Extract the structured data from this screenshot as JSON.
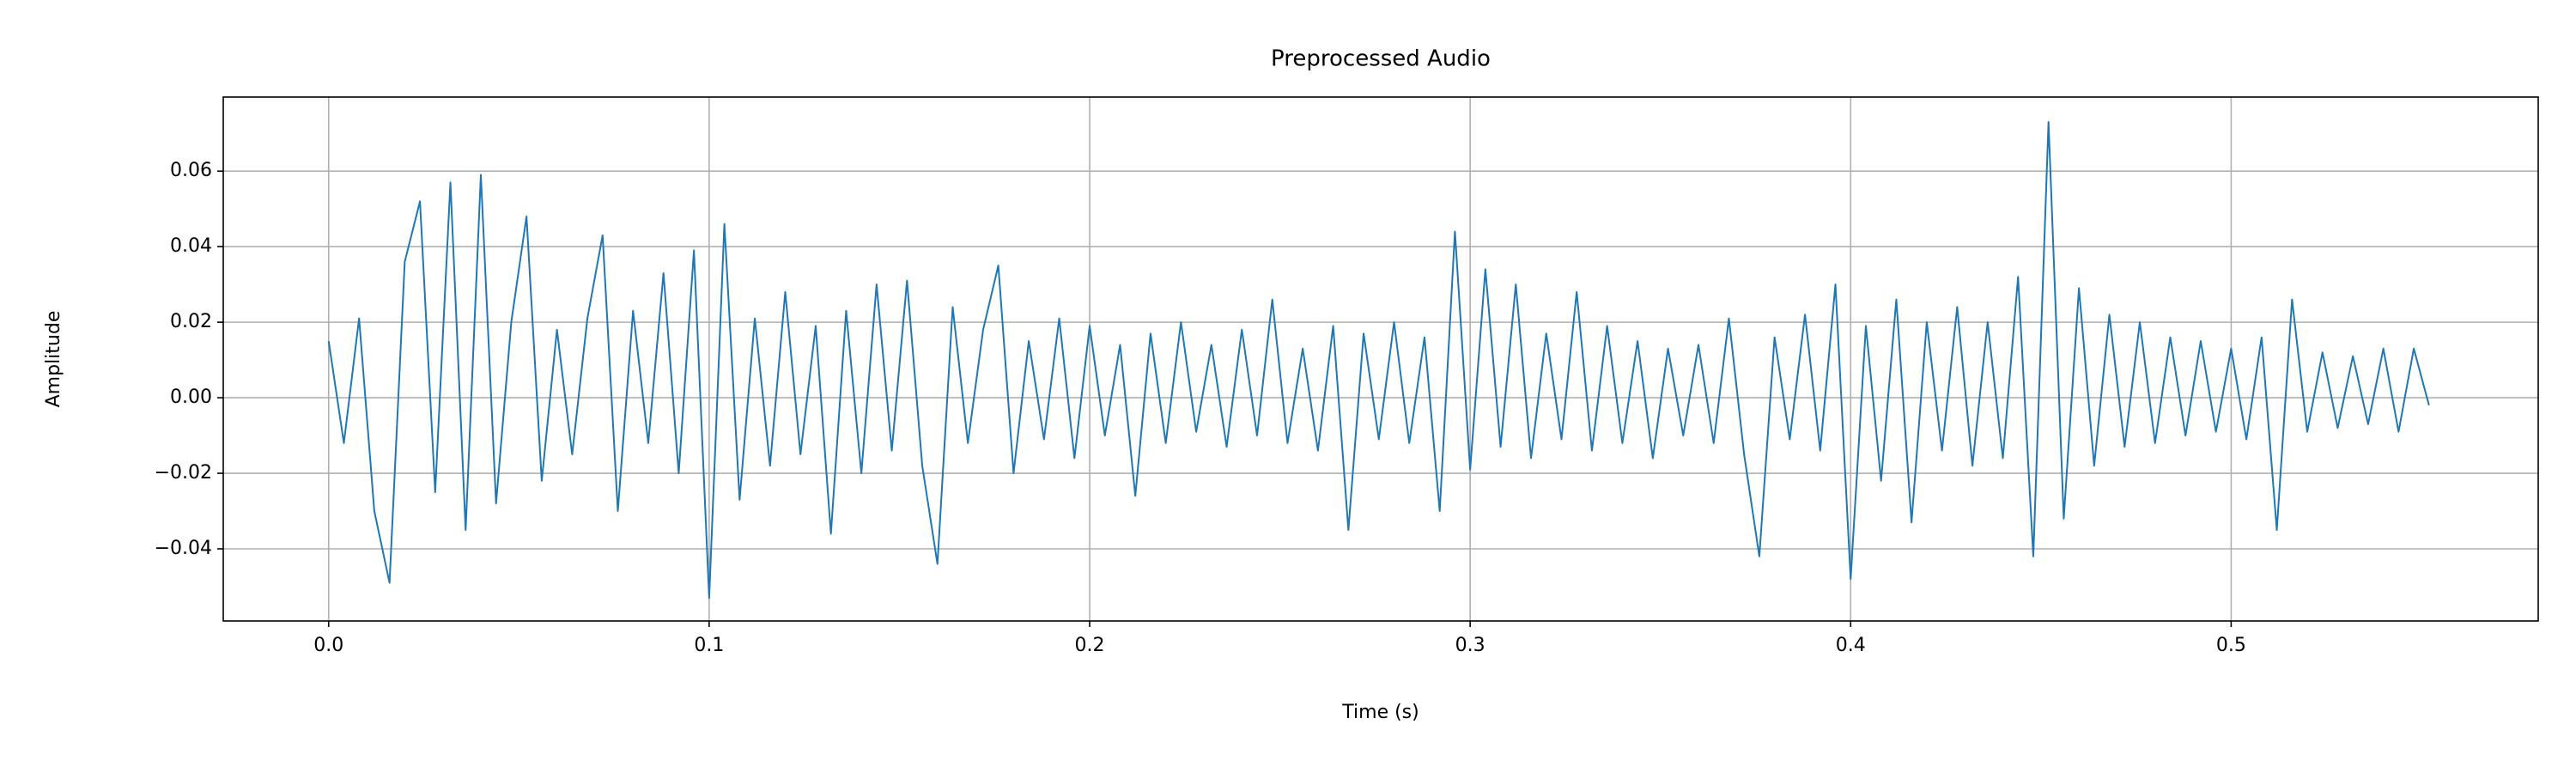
{
  "chart_data": {
    "type": "line",
    "title": "Preprocessed Audio",
    "x_label": "Time (s)",
    "y_label": "Amplitude",
    "x": [
      0.0,
      0.004,
      0.008,
      0.012,
      0.016,
      0.02,
      0.024,
      0.028,
      0.032,
      0.036,
      0.04,
      0.044,
      0.048,
      0.052,
      0.056,
      0.06,
      0.064,
      0.068,
      0.072,
      0.076,
      0.08,
      0.084,
      0.088,
      0.092,
      0.096,
      0.1,
      0.104,
      0.108,
      0.112,
      0.116,
      0.12,
      0.124,
      0.128,
      0.132,
      0.136,
      0.14,
      0.144,
      0.148,
      0.152,
      0.156,
      0.16,
      0.164,
      0.168,
      0.172,
      0.176,
      0.18,
      0.184,
      0.188,
      0.192,
      0.196,
      0.2,
      0.204,
      0.208,
      0.212,
      0.216,
      0.22,
      0.224,
      0.228,
      0.232,
      0.236,
      0.24,
      0.244,
      0.248,
      0.252,
      0.256,
      0.26,
      0.264,
      0.268,
      0.272,
      0.276,
      0.28,
      0.284,
      0.288,
      0.292,
      0.296,
      0.3,
      0.304,
      0.308,
      0.312,
      0.316,
      0.32,
      0.324,
      0.328,
      0.332,
      0.336,
      0.34,
      0.344,
      0.348,
      0.352,
      0.356,
      0.36,
      0.364,
      0.368,
      0.372,
      0.376,
      0.38,
      0.384,
      0.388,
      0.392,
      0.396,
      0.4,
      0.404,
      0.408,
      0.412,
      0.416,
      0.42,
      0.424,
      0.428,
      0.432,
      0.436,
      0.44,
      0.444,
      0.448,
      0.452,
      0.456,
      0.46,
      0.464,
      0.468,
      0.472,
      0.476,
      0.48,
      0.484,
      0.488,
      0.492,
      0.496,
      0.5,
      0.504,
      0.508,
      0.512,
      0.516,
      0.52,
      0.524,
      0.528,
      0.532,
      0.536,
      0.54,
      0.544,
      0.548,
      0.552
    ],
    "series": [
      {
        "name": "Amplitude",
        "color": "#1f77b4",
        "values": [
          0.015,
          -0.012,
          0.021,
          -0.03,
          -0.049,
          0.036,
          0.052,
          -0.025,
          0.057,
          -0.035,
          0.059,
          -0.028,
          0.02,
          0.048,
          -0.022,
          0.018,
          -0.015,
          0.021,
          0.043,
          -0.03,
          0.023,
          -0.012,
          0.033,
          -0.02,
          0.039,
          -0.053,
          0.046,
          -0.027,
          0.021,
          -0.018,
          0.028,
          -0.015,
          0.019,
          -0.036,
          0.023,
          -0.02,
          0.03,
          -0.014,
          0.031,
          -0.018,
          -0.044,
          0.024,
          -0.012,
          0.018,
          0.035,
          -0.02,
          0.015,
          -0.011,
          0.021,
          -0.016,
          0.019,
          -0.01,
          0.014,
          -0.026,
          0.017,
          -0.012,
          0.02,
          -0.009,
          0.014,
          -0.013,
          0.018,
          -0.01,
          0.026,
          -0.012,
          0.013,
          -0.014,
          0.019,
          -0.035,
          0.017,
          -0.011,
          0.02,
          -0.012,
          0.016,
          -0.03,
          0.044,
          -0.019,
          0.034,
          -0.013,
          0.03,
          -0.016,
          0.017,
          -0.011,
          0.028,
          -0.014,
          0.019,
          -0.012,
          0.015,
          -0.016,
          0.013,
          -0.01,
          0.014,
          -0.012,
          0.021,
          -0.015,
          -0.042,
          0.016,
          -0.011,
          0.022,
          -0.014,
          0.03,
          -0.048,
          0.019,
          -0.022,
          0.026,
          -0.033,
          0.02,
          -0.014,
          0.024,
          -0.018,
          0.02,
          -0.016,
          0.032,
          -0.042,
          0.073,
          -0.032,
          0.029,
          -0.018,
          0.022,
          -0.013,
          0.02,
          -0.012,
          0.016,
          -0.01,
          0.015,
          -0.009,
          0.013,
          -0.011,
          0.016,
          -0.035,
          0.026,
          -0.009,
          0.012,
          -0.008,
          0.011,
          -0.007,
          0.013,
          -0.009,
          0.013,
          -0.002
        ]
      }
    ],
    "xlim": [
      -0.0277,
      0.5807
    ],
    "ylim": [
      -0.0591,
      0.0796
    ],
    "xticks": [
      {
        "value": 0.0,
        "label": "0.0"
      },
      {
        "value": 0.1,
        "label": "0.1"
      },
      {
        "value": 0.2,
        "label": "0.2"
      },
      {
        "value": 0.3,
        "label": "0.3"
      },
      {
        "value": 0.4,
        "label": "0.4"
      },
      {
        "value": 0.5,
        "label": "0.5"
      }
    ],
    "yticks": [
      {
        "value": -0.04,
        "label": "−0.04"
      },
      {
        "value": -0.02,
        "label": "−0.02"
      },
      {
        "value": 0.0,
        "label": "0.00"
      },
      {
        "value": 0.02,
        "label": "0.02"
      },
      {
        "value": 0.04,
        "label": "0.04"
      },
      {
        "value": 0.06,
        "label": "0.06"
      }
    ],
    "grid": true
  }
}
